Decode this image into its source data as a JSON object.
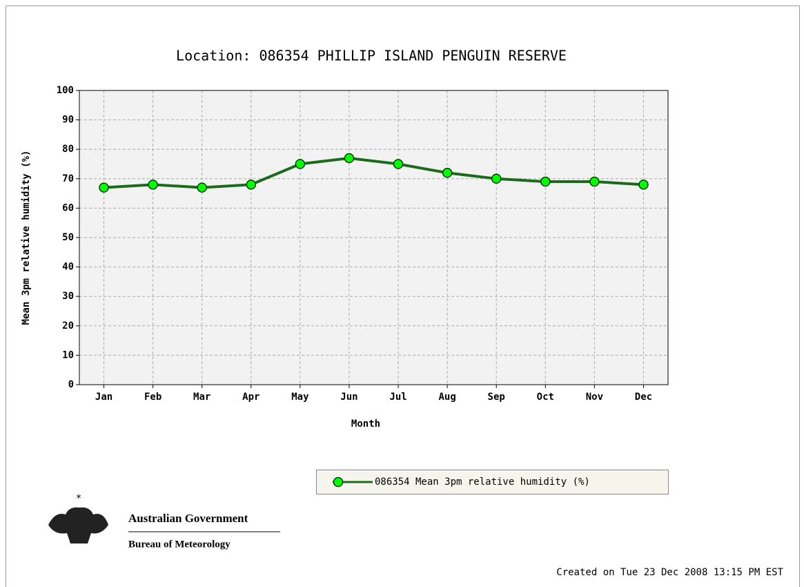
{
  "chart_data": {
    "type": "line",
    "title": "Location: 086354 PHILLIP ISLAND PENGUIN RESERVE",
    "x_label": "Month",
    "y_label": "Mean 3pm relative humidity (%)",
    "categories": [
      "Jan",
      "Feb",
      "Mar",
      "Apr",
      "May",
      "Jun",
      "Jul",
      "Aug",
      "Sep",
      "Oct",
      "Nov",
      "Dec"
    ],
    "series": [
      {
        "name": "086354 Mean 3pm relative humidity (%)",
        "color": "#1b6b1b",
        "marker_color": "#00ff00",
        "values": [
          67,
          68,
          67,
          68,
          75,
          77,
          75,
          72,
          70,
          69,
          69,
          68
        ]
      }
    ],
    "ylim": [
      0,
      100
    ],
    "yticks": [
      0,
      10,
      20,
      30,
      40,
      50,
      60,
      70,
      80,
      90,
      100
    ],
    "grid": true,
    "legend": "bottom-right"
  },
  "logo": {
    "line1": "Australian Government",
    "line2": "Bureau of Meteorology"
  },
  "footer": {
    "created": "Created on Tue 23 Dec 2008 13:15 PM EST"
  }
}
